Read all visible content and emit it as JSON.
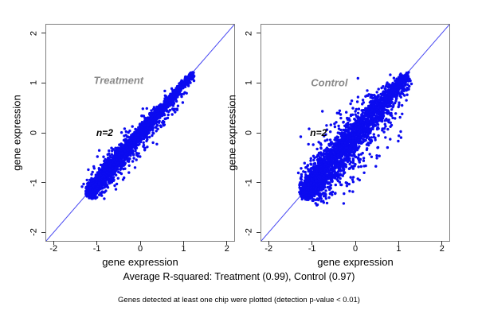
{
  "figure": {
    "caption_primary": "Average R-squared: Treatment (0.99), Control (0.97)",
    "caption_secondary": "Genes detected at least one chip were plotted (detection p-value < 0.01)"
  },
  "colors": {
    "point": "#0b0bf0",
    "reference_line": "#4646f2",
    "axis_box": "#7f7f7f",
    "tick": "#333333",
    "panel_label": "#8a8a8a",
    "text": "#000000",
    "background": "#ffffff"
  },
  "chart_data": [
    {
      "type": "scatter",
      "title": "Treatment",
      "annotation": "n=2",
      "xlabel": "gene expression",
      "ylabel": "gene expression",
      "xlim": [
        -2.17,
        2.17
      ],
      "ylim": [
        -2.17,
        2.17
      ],
      "xticks": [
        -2,
        -1,
        0,
        1,
        2
      ],
      "yticks": [
        -2,
        -1,
        0,
        1,
        2
      ],
      "reference_line": "y=x",
      "r_squared": 0.99,
      "title_pos": [
        -0.5,
        1.05
      ],
      "annotation_pos": [
        -0.82,
        0.0
      ],
      "point_cloud": {
        "description": "dense cloud hugging the identity line from (-1.2,-1.2) to (1.2,1.2), widest near lower-middle, slight bias below the line",
        "seed": 42,
        "n_points": 3000,
        "t_min": -1.22,
        "t_max": 1.2,
        "t_skew": 1.7,
        "sd_base": 0.012,
        "sd_amp": 0.055,
        "sd_pow": 0.9,
        "peak_shift": 0.55,
        "fan_frac": 0.22,
        "fan_mult": 2.4,
        "fan_bias": 0.03,
        "bias": 0.008,
        "jitter": 0.015,
        "outliers": 10,
        "outlier_min": 0.12,
        "outlier_max": 0.3,
        "outlier_below_frac": 0.85
      }
    },
    {
      "type": "scatter",
      "title": "Control",
      "annotation": "n=2",
      "xlabel": "gene expression",
      "ylabel": "gene expression",
      "xlim": [
        -2.17,
        2.17
      ],
      "ylim": [
        -2.17,
        2.17
      ],
      "xticks": [
        -2,
        -1,
        0,
        1,
        2
      ],
      "yticks": [
        -2,
        -1,
        0,
        1,
        2
      ],
      "reference_line": "y=x",
      "r_squared": 0.97,
      "title_pos": [
        -0.6,
        1.0
      ],
      "annotation_pos": [
        -0.85,
        0.0
      ],
      "point_cloud": {
        "description": "broad noisy cloud along the identity line from (-1.2,-1.2) to (1.2,1.2), tapered at both ends, many stray points mostly below/right of the line",
        "seed": 7,
        "n_points": 3200,
        "t_min": -1.22,
        "t_max": 1.18,
        "t_skew": 1.6,
        "sd_base": 0.02,
        "sd_amp": 0.115,
        "sd_pow": 0.8,
        "peak_shift": 0.7,
        "fan_frac": 0.3,
        "fan_mult": 2.1,
        "fan_bias": 0.06,
        "bias": 0.02,
        "jitter": 0.02,
        "outliers": 42,
        "outlier_min": 0.15,
        "outlier_max": 0.85,
        "outlier_below_frac": 0.8
      }
    }
  ]
}
